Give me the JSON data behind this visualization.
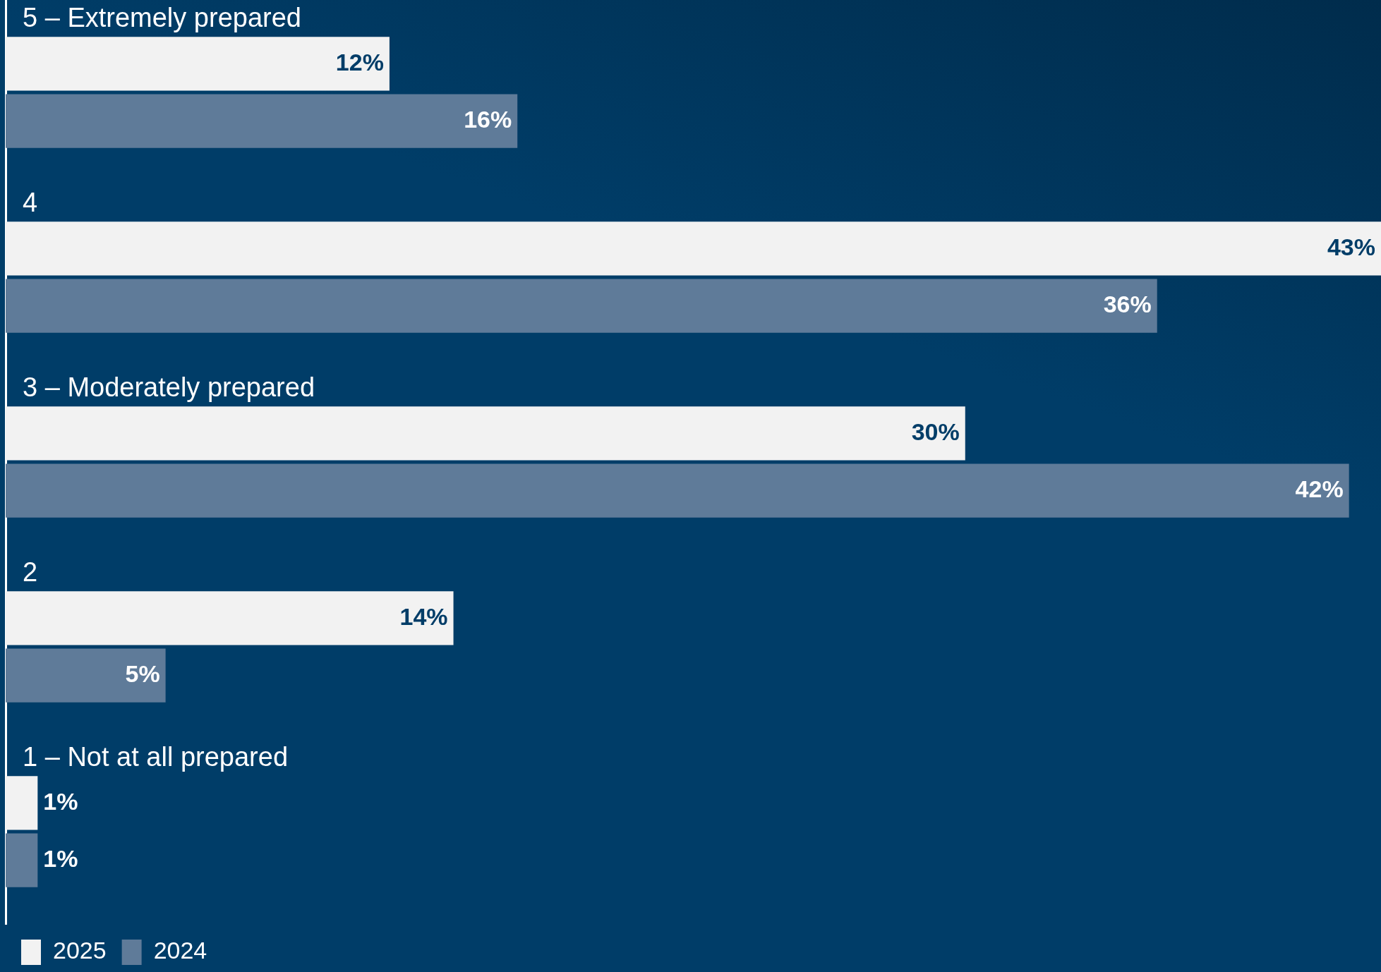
{
  "chart_data": {
    "type": "bar",
    "orientation": "horizontal",
    "categories": [
      "5 – Extremely prepared",
      "4",
      "3 – Moderately prepared",
      "2",
      "1 – Not at all prepared"
    ],
    "series": [
      {
        "name": "2025",
        "color": "#f2f2f2",
        "values": [
          12,
          43,
          30,
          14,
          1
        ],
        "value_labels": [
          "12%",
          "43%",
          "30%",
          "14%",
          "1%"
        ]
      },
      {
        "name": "2024",
        "color": "#5f7b99",
        "values": [
          16,
          36,
          42,
          5,
          1
        ],
        "value_labels": [
          "16%",
          "36%",
          "42%",
          "5%",
          "1%"
        ]
      }
    ],
    "legend": "bottom left"
  }
}
